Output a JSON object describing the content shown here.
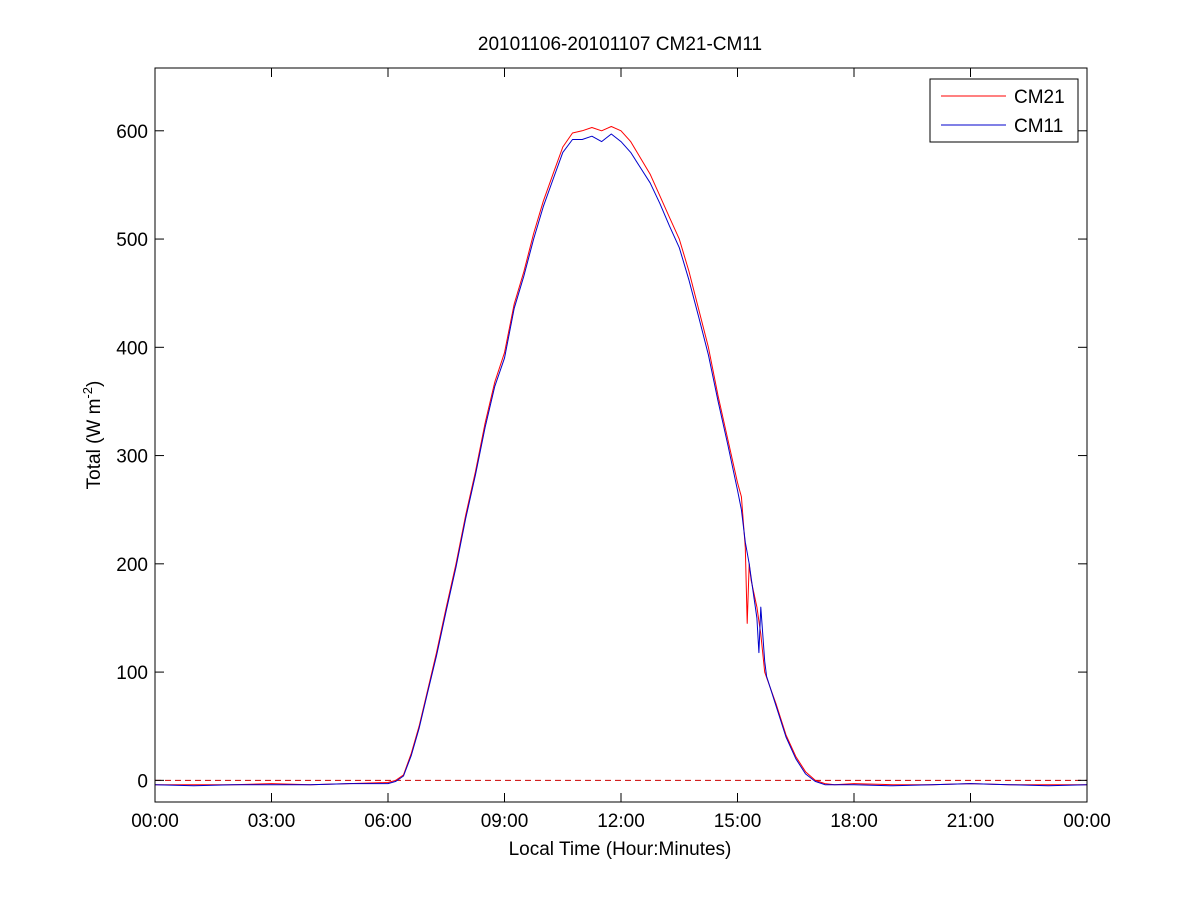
{
  "chart_data": {
    "type": "line",
    "title": "20101106-20101107 CM21-CM11",
    "xlabel": "Local Time (Hour:Minutes)",
    "ylabel": "Total (W m-2)",
    "ylabel_base": "Total (W m",
    "ylabel_sup": "-2",
    "ylabel_close": ")",
    "x_unit": "hours",
    "xlim": [
      0,
      24
    ],
    "ylim": [
      -20,
      658
    ],
    "x_ticks": [
      0,
      3,
      6,
      9,
      12,
      15,
      18,
      21,
      24
    ],
    "x_tick_labels": [
      "00:00",
      "03:00",
      "06:00",
      "09:00",
      "12:00",
      "15:00",
      "18:00",
      "21:00",
      "00:00"
    ],
    "y_ticks": [
      0,
      100,
      200,
      300,
      400,
      500,
      600
    ],
    "y_tick_labels": [
      "0",
      "100",
      "200",
      "300",
      "400",
      "500",
      "600"
    ],
    "grid": false,
    "legend_position": "top-right",
    "reference_line": {
      "y": 0,
      "style": "dashed",
      "color": "#cc0000"
    },
    "series": [
      {
        "name": "CM21",
        "color": "#ff0000",
        "x": [
          0,
          1,
          2,
          3,
          4,
          5,
          6,
          6.2,
          6.4,
          6.6,
          6.8,
          7,
          7.25,
          7.5,
          7.75,
          8,
          8.25,
          8.5,
          8.75,
          9,
          9.25,
          9.5,
          9.75,
          10,
          10.25,
          10.5,
          10.75,
          11,
          11.25,
          11.5,
          11.75,
          12,
          12.25,
          12.5,
          12.75,
          13,
          13.25,
          13.5,
          13.75,
          14,
          14.25,
          14.5,
          14.75,
          15,
          15.1,
          15.2,
          15.25,
          15.3,
          15.35,
          15.5,
          15.6,
          15.7,
          15.75,
          16,
          16.25,
          16.5,
          16.75,
          17,
          17.25,
          17.5,
          18,
          19,
          20,
          21,
          22,
          23,
          24
        ],
        "y": [
          -4,
          -4,
          -4,
          -3,
          -4,
          -3,
          -2,
          0,
          5,
          25,
          50,
          80,
          118,
          160,
          200,
          245,
          285,
          330,
          368,
          395,
          440,
          470,
          505,
          535,
          560,
          585,
          598,
          600,
          603,
          600,
          604,
          600,
          590,
          575,
          560,
          540,
          520,
          500,
          470,
          435,
          400,
          355,
          315,
          275,
          262,
          215,
          145,
          200,
          185,
          160,
          135,
          100,
          95,
          70,
          42,
          22,
          8,
          0,
          -3,
          -4,
          -3,
          -4,
          -4,
          -3,
          -4,
          -4,
          -4
        ]
      },
      {
        "name": "CM11",
        "color": "#0000cc",
        "x": [
          0,
          1,
          2,
          3,
          4,
          5,
          6,
          6.2,
          6.4,
          6.6,
          6.8,
          7,
          7.25,
          7.5,
          7.75,
          8,
          8.25,
          8.5,
          8.75,
          9,
          9.25,
          9.5,
          9.75,
          10,
          10.25,
          10.5,
          10.75,
          11,
          11.25,
          11.5,
          11.75,
          12,
          12.25,
          12.5,
          12.75,
          13,
          13.25,
          13.5,
          13.75,
          14,
          14.25,
          14.5,
          14.75,
          15,
          15.1,
          15.2,
          15.3,
          15.4,
          15.5,
          15.55,
          15.6,
          15.7,
          15.75,
          16,
          16.25,
          16.5,
          16.75,
          17,
          17.25,
          17.5,
          18,
          19,
          20,
          21,
          22,
          23,
          24
        ],
        "y": [
          -4,
          -5,
          -4,
          -4,
          -4,
          -3,
          -3,
          -1,
          4,
          23,
          48,
          78,
          115,
          157,
          197,
          242,
          282,
          326,
          364,
          390,
          436,
          466,
          500,
          530,
          555,
          580,
          592,
          592,
          595,
          590,
          597,
          590,
          580,
          566,
          552,
          533,
          512,
          492,
          462,
          428,
          393,
          350,
          310,
          268,
          250,
          220,
          200,
          175,
          150,
          118,
          160,
          110,
          96,
          68,
          40,
          20,
          6,
          -1,
          -4,
          -4,
          -4,
          -5,
          -4,
          -3,
          -4,
          -5,
          -4
        ]
      }
    ]
  }
}
